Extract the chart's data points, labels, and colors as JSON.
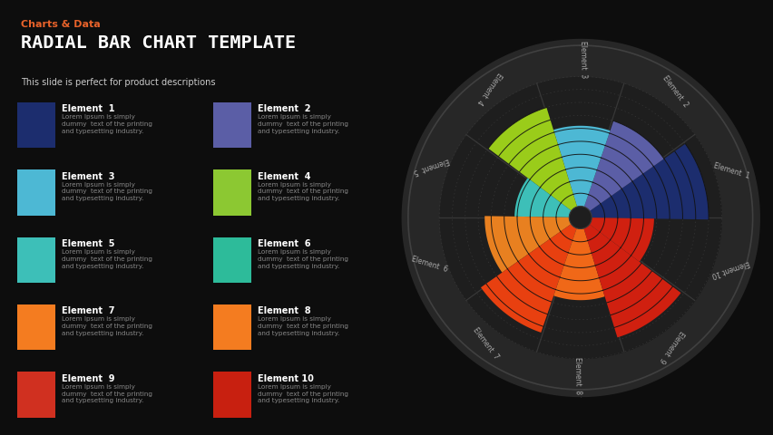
{
  "bg_color": "#0d0d0d",
  "title_tag": "Charts & Data",
  "title_tag_color": "#e8622a",
  "title": "RADIAL BAR CHART TEMPLATE",
  "subtitle": "This slide is perfect for product descriptions",
  "elements": [
    {
      "name": "Element  1",
      "color": "#1c2d6e",
      "icon_color": "#1c2d6e"
    },
    {
      "name": "Element  2",
      "color": "#5b5ea6",
      "icon_color": "#5b5ea6"
    },
    {
      "name": "Element  3",
      "color": "#4db8d4",
      "icon_color": "#4db8d4"
    },
    {
      "name": "Element  4",
      "color": "#9acc1a",
      "icon_color": "#8cc832"
    },
    {
      "name": "Element  5",
      "color": "#3dbfb8",
      "icon_color": "#3dbfb8"
    },
    {
      "name": "Element  6",
      "color": "#e88020",
      "icon_color": "#2dbb9a"
    },
    {
      "name": "Element  7",
      "color": "#e84010",
      "icon_color": "#f47c20"
    },
    {
      "name": "Element  8",
      "color": "#f06818",
      "icon_color": "#f47c20"
    },
    {
      "name": "Element  9",
      "color": "#d02010",
      "icon_color": "#d03020"
    },
    {
      "name": "Element 10",
      "color": "#d02010",
      "icon_color": "#c82010"
    }
  ],
  "values": [
    0.9,
    0.7,
    0.62,
    0.8,
    0.42,
    0.65,
    0.85,
    0.55,
    0.88,
    0.48
  ],
  "chart_bg": "#1e1e1e",
  "spoke_color": "#3a3a3a",
  "label_color": "#aaaaaa",
  "n_rings": 10,
  "lorem": "Lorem Ipsum is simply\ndummy  text of the printing\nand typesetting industry."
}
